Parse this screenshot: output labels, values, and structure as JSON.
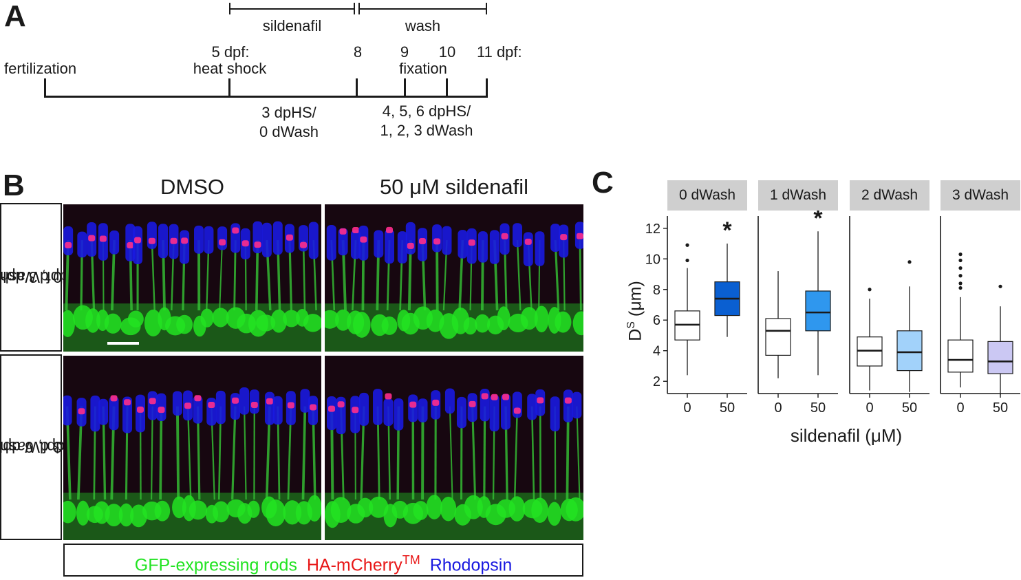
{
  "panel_a": {
    "letter": "A",
    "sildenafil_label": "sildenafil",
    "wash_label": "wash",
    "fertilization_label": "fertilization",
    "dpf5_label": "5 dpf:",
    "heat_shock_label": "heat shock",
    "dpf8_label": "8",
    "dpf9_label": "9",
    "dpf10_label": "10",
    "dpf11_label": "11 dpf:",
    "fixation_label": "fixation",
    "lower_left_line1": "3 dpHS/",
    "lower_left_line2": "0 dWash",
    "lower_right_line1": "4, 5, 6 dpHS/",
    "lower_right_line2": "1, 2, 3 dWash"
  },
  "panel_b": {
    "letter": "B",
    "col_dmso": "DMSO",
    "col_sildenafil": "50 μM sildenafil",
    "row1_line1": "8 dpf, 3 dpHS,",
    "row1_line2": "0 dWash",
    "row2_line1": "11 dpf, 6 dpHS,",
    "row2_line2": "3 dWash",
    "legend_gfp": "GFP-expressing rods",
    "legend_ha": "HA-mCherry",
    "legend_tm": "TM",
    "legend_rho": "Rhodopsin",
    "colors": {
      "gfp": "#22e322",
      "ha": "#e81818",
      "rho": "#1a1ae0"
    }
  },
  "chart_data": {
    "type": "box",
    "letter": "C",
    "ylabel_main": "D",
    "ylabel_sup": "S",
    "ylabel_unit": " (μm)",
    "xlabel": "sildenafil (μM)",
    "ylim": [
      1.2,
      12.8
    ],
    "yticks": [
      2,
      4,
      6,
      8,
      10,
      12
    ],
    "categories": [
      "0",
      "50"
    ],
    "facets": [
      {
        "name": "0 dWash",
        "boxes": [
          {
            "x": "0",
            "whisker_low": 2.4,
            "q1": 4.7,
            "median": 5.7,
            "q3": 6.6,
            "whisker_high": 9.4,
            "outliers": [
              9.9,
              10.9
            ],
            "fill": "#ffffff"
          },
          {
            "x": "50",
            "whisker_low": 4.9,
            "q1": 6.3,
            "median": 7.4,
            "q3": 8.5,
            "whisker_high": 11.0,
            "outliers": [],
            "fill": "#0a5fd1",
            "significance": "*"
          }
        ]
      },
      {
        "name": "1 dWash",
        "boxes": [
          {
            "x": "0",
            "whisker_low": 2.2,
            "q1": 3.7,
            "median": 5.3,
            "q3": 6.1,
            "whisker_high": 9.2,
            "outliers": [],
            "fill": "#ffffff"
          },
          {
            "x": "50",
            "whisker_low": 2.4,
            "q1": 5.3,
            "median": 6.5,
            "q3": 7.9,
            "whisker_high": 11.8,
            "outliers": [],
            "fill": "#2f97ee",
            "significance": "*"
          }
        ]
      },
      {
        "name": "2 dWash",
        "boxes": [
          {
            "x": "0",
            "whisker_low": 1.4,
            "q1": 3.0,
            "median": 4.0,
            "q3": 4.9,
            "whisker_high": 7.4,
            "outliers": [
              8.0
            ],
            "fill": "#ffffff"
          },
          {
            "x": "50",
            "whisker_low": 1.3,
            "q1": 2.7,
            "median": 3.9,
            "q3": 5.3,
            "whisker_high": 8.2,
            "outliers": [
              9.8
            ],
            "fill": "#a2d2fa"
          }
        ]
      },
      {
        "name": "3 dWash",
        "boxes": [
          {
            "x": "0",
            "whisker_low": 1.6,
            "q1": 2.6,
            "median": 3.4,
            "q3": 4.7,
            "whisker_high": 7.5,
            "outliers": [
              8.1,
              8.4,
              8.9,
              9.4,
              9.9,
              10.3
            ],
            "fill": "#ffffff"
          },
          {
            "x": "50",
            "whisker_low": 1.1,
            "q1": 2.5,
            "median": 3.3,
            "q3": 4.6,
            "whisker_high": 6.9,
            "outliers": [
              8.2
            ],
            "fill": "#cbc8f3"
          }
        ]
      }
    ]
  }
}
